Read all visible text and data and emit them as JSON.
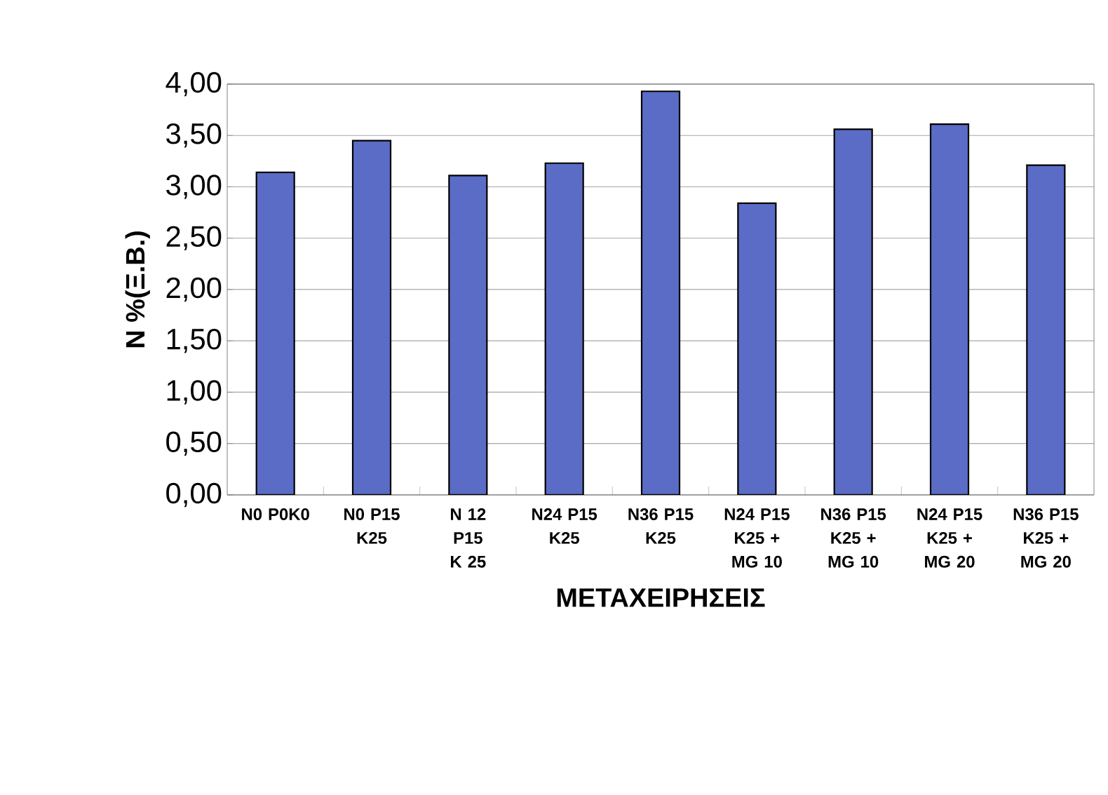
{
  "chart_data": {
    "type": "bar",
    "categories": [
      "N0 P0K0",
      "N0 P15 K25",
      "N 12 P15 K 25",
      "N24 P15 K25",
      "N36 P15 K25",
      "N24 P15 K25 + MG 10",
      "N36 P15 K25 + MG 10",
      "N24 P15 K25 + MG 20",
      "N36 P15 K25 + MG 20"
    ],
    "values": [
      3.14,
      3.45,
      3.11,
      3.23,
      3.93,
      2.84,
      3.56,
      3.61,
      3.21
    ],
    "color": "#5b6cc6",
    "xlabel": "ΜΕΤΑΧΕΙΡΗΣΕΙΣ",
    "ylabel": "N %(Ξ.Β.)",
    "ylim": [
      0,
      4
    ],
    "yticks": [
      {
        "value": 0,
        "label": "0,00"
      },
      {
        "value": 0.5,
        "label": "0,50"
      },
      {
        "value": 1,
        "label": "1,00"
      },
      {
        "value": 1.5,
        "label": "1,50"
      },
      {
        "value": 2,
        "label": "2,00"
      },
      {
        "value": 2.5,
        "label": "2,50"
      },
      {
        "value": 3,
        "label": "3,00"
      },
      {
        "value": 3.5,
        "label": "3,50"
      },
      {
        "value": 4,
        "label": "4,00"
      }
    ],
    "grid": "y"
  }
}
